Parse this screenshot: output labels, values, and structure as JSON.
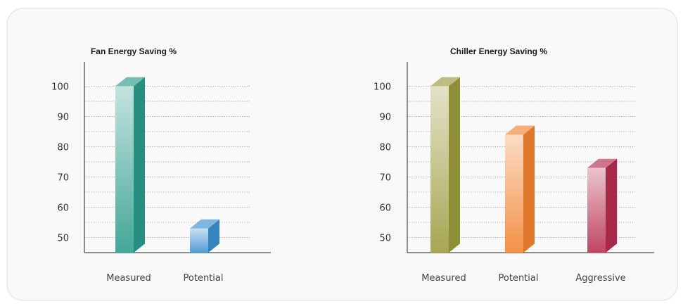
{
  "chart_data": [
    {
      "type": "bar",
      "title": "Fan Energy Saving %",
      "categories": [
        "Measured",
        "Potential"
      ],
      "values": [
        100,
        53
      ],
      "colors": [
        "#2a9b8a",
        "#3a8fcf"
      ],
      "ylim": [
        45,
        108
      ],
      "yticks": [
        50,
        60,
        70,
        80,
        90,
        100
      ],
      "grid": true
    },
    {
      "type": "bar",
      "title": "Chiller Energy Saving %",
      "categories": [
        "Measured",
        "Potential",
        "Aggressive"
      ],
      "values": [
        100,
        84,
        73
      ],
      "colors": [
        "#9a9a3c",
        "#f2822e",
        "#b72c4e"
      ],
      "ylim": [
        45,
        108
      ],
      "yticks": [
        50,
        60,
        70,
        80,
        90,
        100
      ],
      "grid": true
    }
  ]
}
